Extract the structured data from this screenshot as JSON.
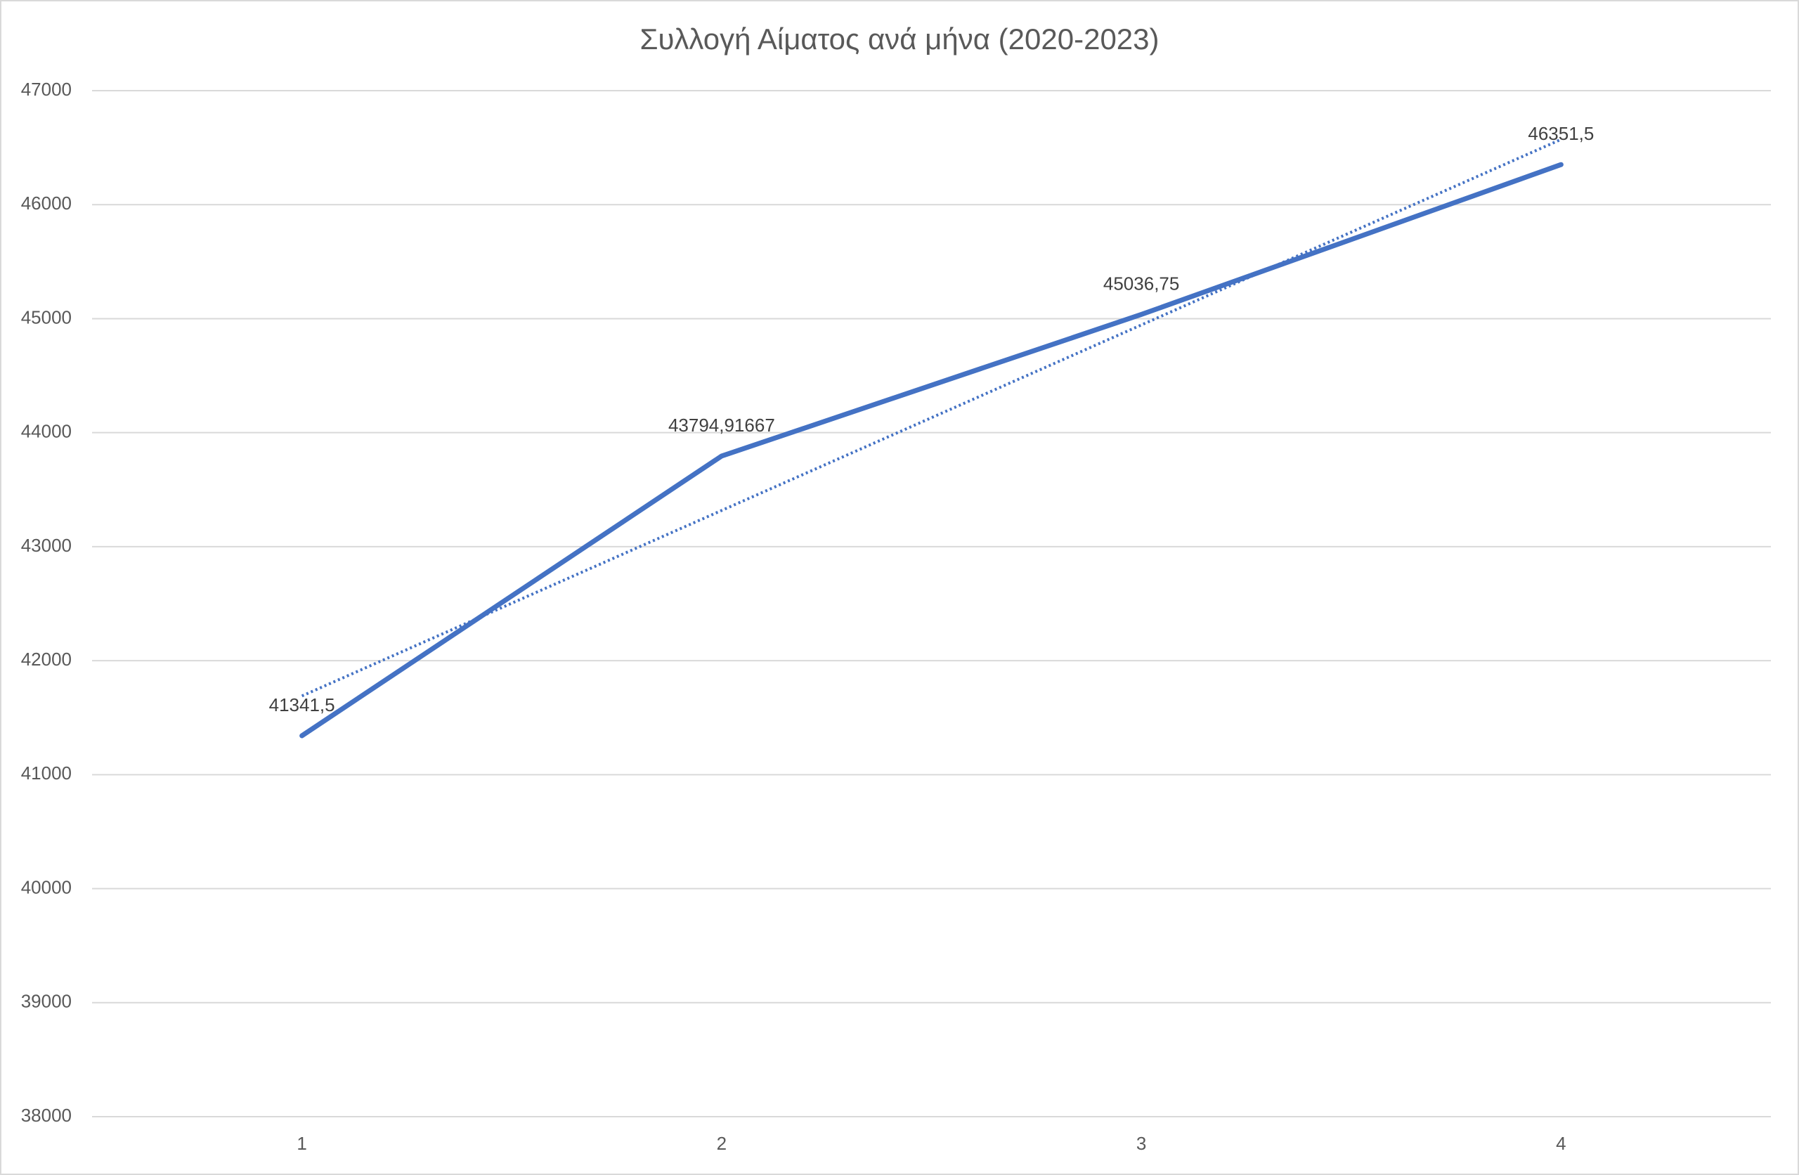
{
  "chart_data": {
    "type": "line",
    "title": "Συλλογή Αίματος ανά μήνα (2020-2023)",
    "categories": [
      "1",
      "2",
      "3",
      "4"
    ],
    "series": [
      {
        "color": "#4472c4",
        "values": [
          41341.5,
          43794.91667,
          45036.75,
          46351.5
        ],
        "value_labels": [
          "41341,5",
          "43794,91667",
          "45036,75",
          "46351,5"
        ],
        "trendline": "linear"
      }
    ],
    "ylim": [
      38000,
      47000
    ],
    "yticks": [
      38000,
      39000,
      40000,
      41000,
      42000,
      43000,
      44000,
      45000,
      46000,
      47000
    ],
    "grid": true
  }
}
